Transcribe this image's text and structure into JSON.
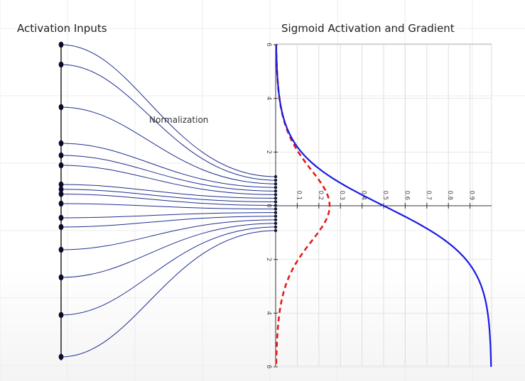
{
  "left_title": "Activation Inputs",
  "right_title": "Sigmoid Activation and Gradient",
  "normalization_label": "Normalization",
  "colors": {
    "sigmoid": "#1a1ae6",
    "gradient": "#e61a1a",
    "lines": "#1f2f8f",
    "dots": "#0a0a2a"
  },
  "input_count": 16,
  "chart_data": {
    "type": "line",
    "title": "Sigmoid Activation and Gradient",
    "orientation": "rotated-90",
    "x_ticks": [
      "6",
      "4",
      "2",
      "0",
      "2",
      "4",
      "6"
    ],
    "y_ticks": [
      "0.1",
      "0.2",
      "0.3",
      "0.4",
      "0.5",
      "0.6",
      "0.7",
      "0.8",
      "0.9"
    ],
    "xlim": [
      -6,
      6
    ],
    "ylim": [
      0,
      1
    ],
    "grid": true,
    "series": [
      {
        "kind": "sigmoid",
        "style": "solid",
        "color": "#1a1ae6"
      },
      {
        "kind": "sigmoid-derivative",
        "style": "dashed",
        "color": "#e61a1a"
      }
    ]
  }
}
